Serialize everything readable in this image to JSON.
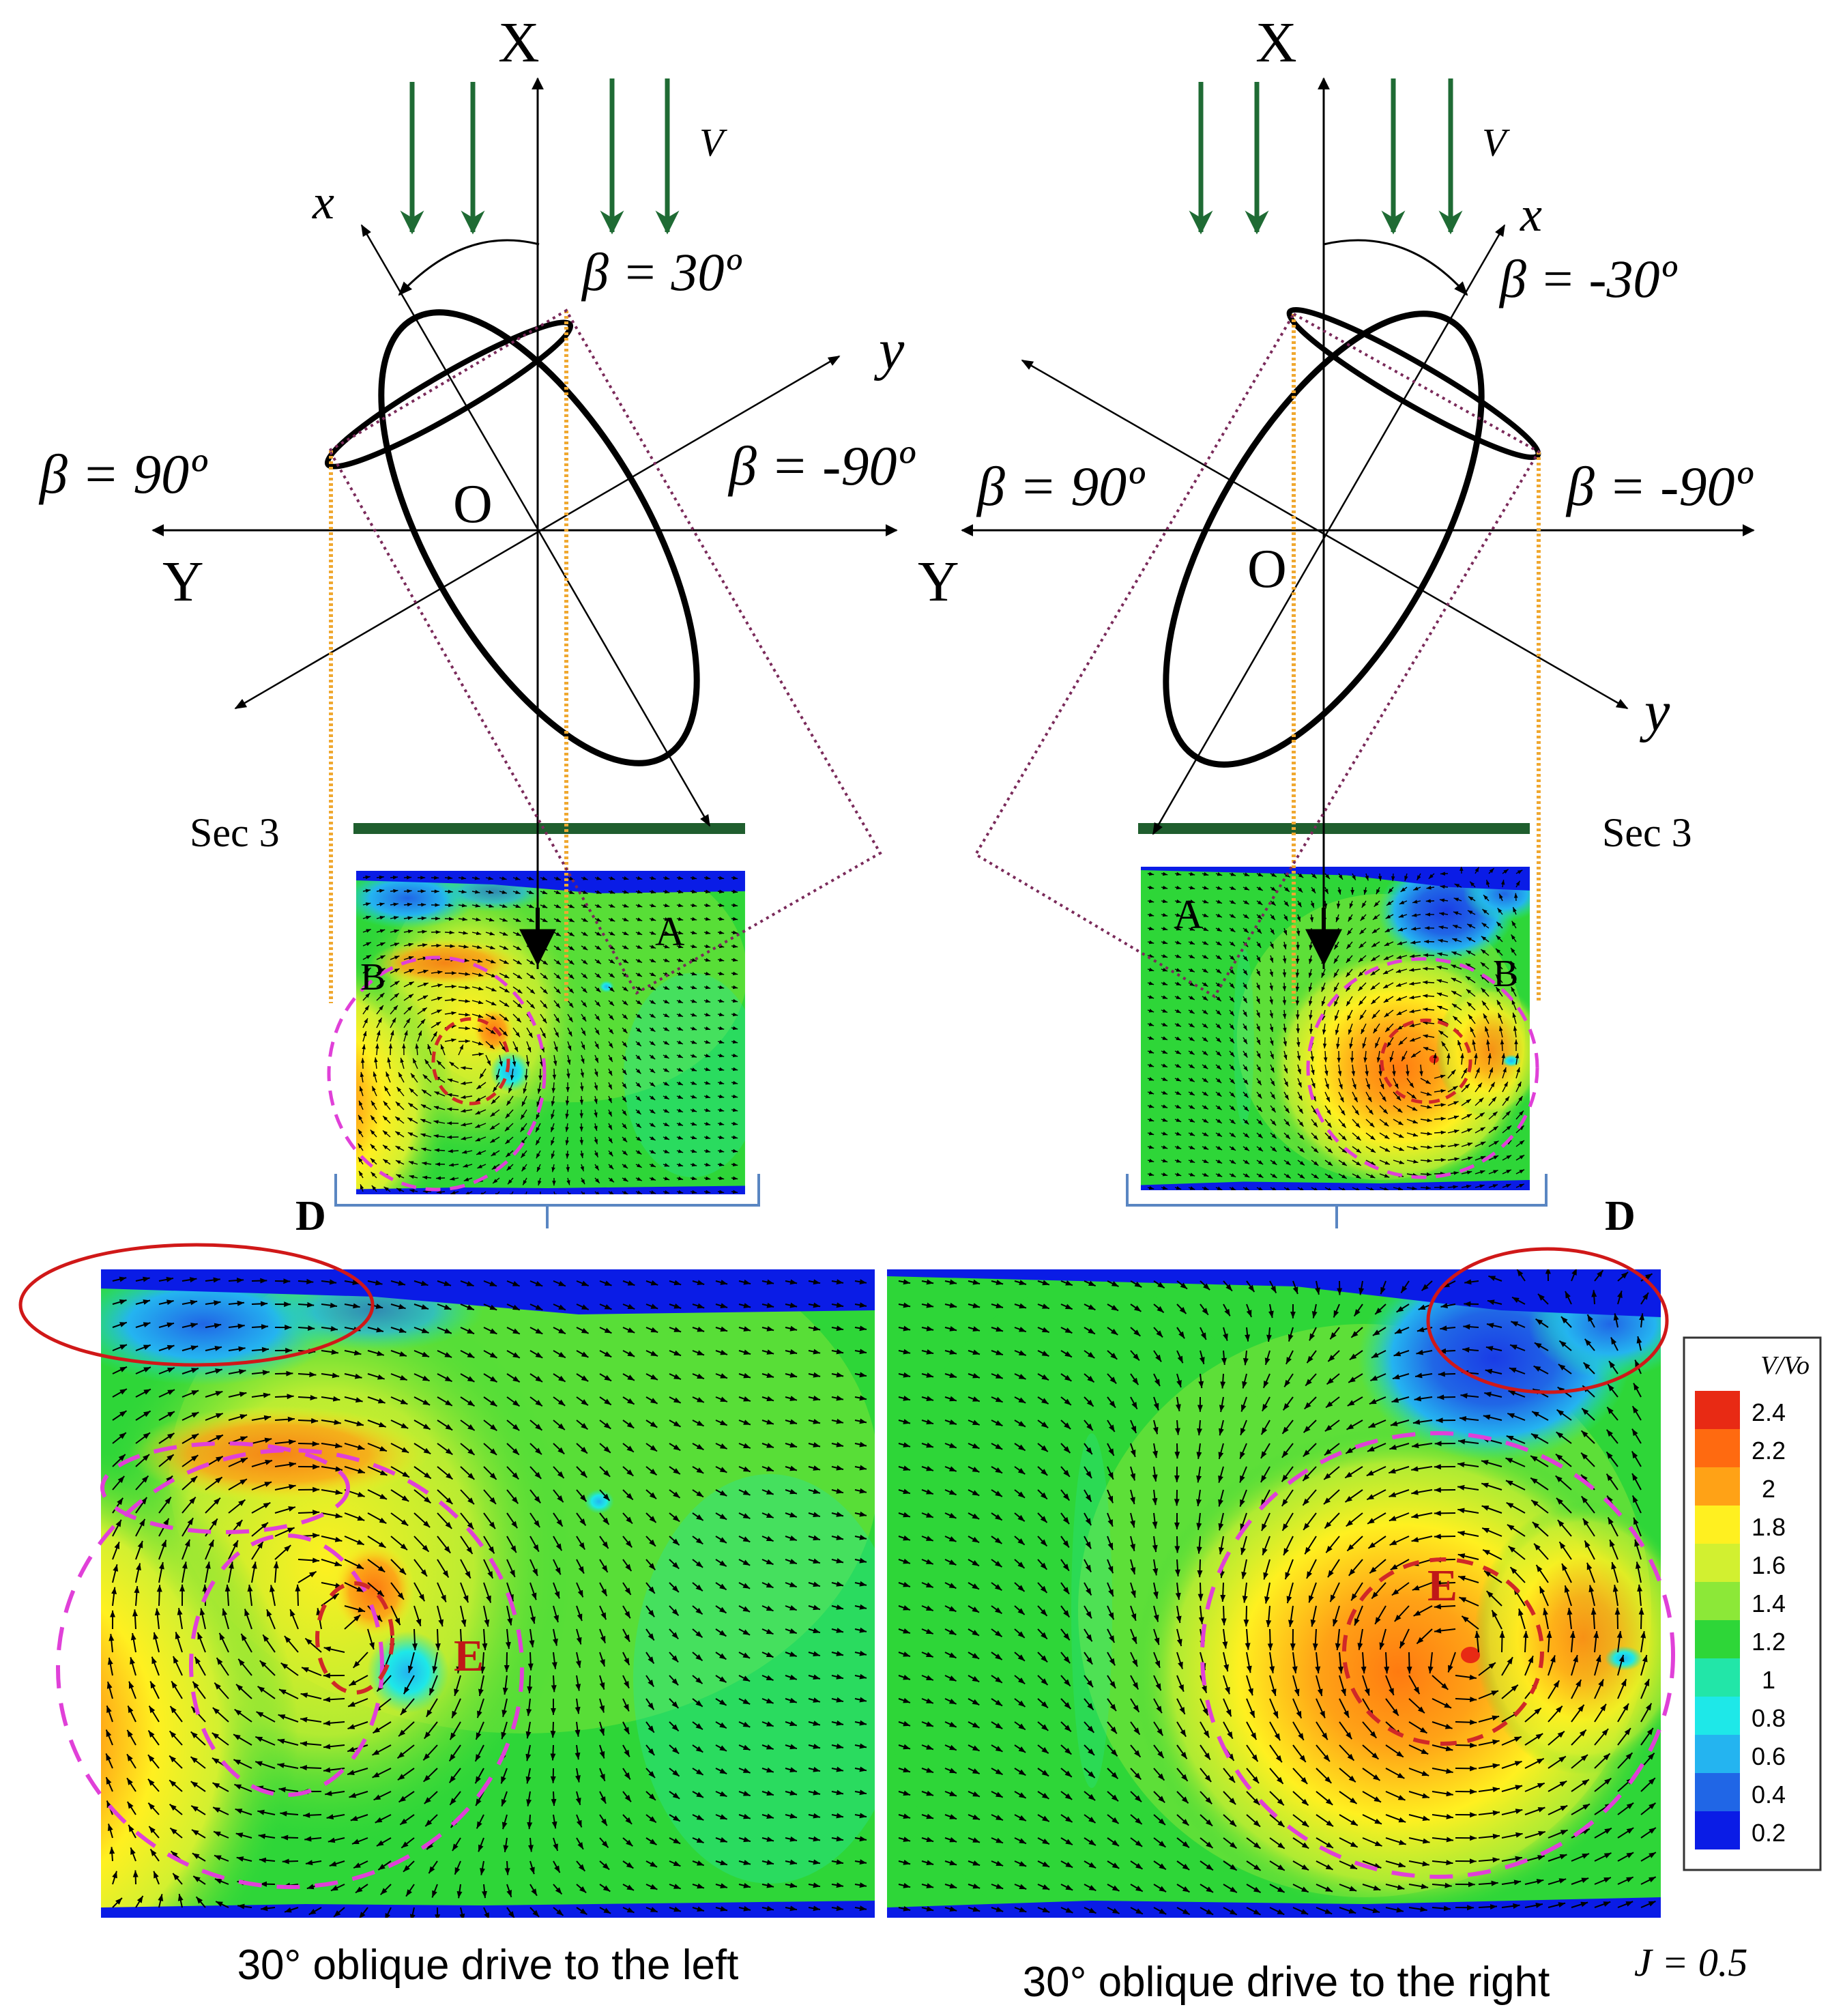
{
  "colors": {
    "flow_arrow": "#1f6b34",
    "section_bar": "#1f5e2e",
    "projection_line": "#f0a830",
    "prism_edge": "#7a2a5a",
    "vortex_circle": "#e040d8",
    "core_circle": "#d02828",
    "highlight_ellipse": "#d01818",
    "bracket": "#5a86c2",
    "label_red": "#c01818"
  },
  "colorbar": {
    "title": "V/Vo",
    "ticks": [
      "2.4",
      "2.2",
      "2",
      "1.8",
      "1.6",
      "1.4",
      "1.2",
      "1",
      "0.8",
      "0.6",
      "0.4",
      "0.2"
    ],
    "colors": [
      "#e82a14",
      "#ff6a10",
      "#ffa216",
      "#fff020",
      "#d2f030",
      "#8ce838",
      "#2ed638",
      "#22e6a8",
      "#1ee8e8",
      "#24b4f0",
      "#2066e6",
      "#0a1ce6"
    ]
  },
  "left_diagram": {
    "axis_X": "X",
    "axis_Y": "Y",
    "axis_x": "x",
    "axis_y": "y",
    "origin": "O",
    "velocity": "V",
    "beta_drive": "β = 30º",
    "beta_left": "β = 90º",
    "beta_right": "β = -90º",
    "section": "Sec 3",
    "label_A": "A",
    "label_B": "B",
    "label_D": "D",
    "label_E": "E",
    "caption": "30° oblique drive to the left"
  },
  "right_diagram": {
    "axis_X": "X",
    "axis_Y": "Y",
    "axis_x": "x",
    "axis_y": "y",
    "origin": "O",
    "velocity": "V",
    "beta_drive": "β = -30º",
    "beta_left": "β = 90º",
    "beta_right": "β = -90º",
    "section": "Sec 3",
    "label_A": "A",
    "label_B": "B",
    "label_D": "D",
    "label_E": "E",
    "caption": "30° oblique drive to the right"
  },
  "advance_ratio": "J = 0.5"
}
